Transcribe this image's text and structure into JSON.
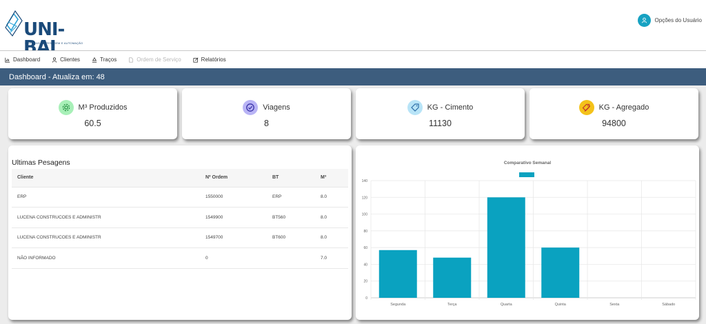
{
  "header": {
    "logo_text": "UNI-BAL",
    "logo_subtitle": "SISTEMAS DE PESAGEM E AUTOMAÇÃO",
    "user_options_label": "Opções do Usuário"
  },
  "nav": {
    "items": [
      {
        "label": "Dashboard",
        "icon": "chart-icon"
      },
      {
        "label": "Clientes",
        "icon": "user-icon"
      },
      {
        "label": "Traços",
        "icon": "truck-icon"
      },
      {
        "label": "Ordem de Serviço",
        "icon": "document-icon"
      },
      {
        "label": "Relatórios",
        "icon": "edit-icon"
      }
    ]
  },
  "titlebar": {
    "text": "Dashboard - Atualiza em: 48"
  },
  "stats": [
    {
      "label": "M³ Produzidos",
      "value": "60.5",
      "icon": "gear-icon",
      "icon_bg": "#a8f0b8",
      "icon_color": "#1e8a3c"
    },
    {
      "label": "Viagens",
      "value": "8",
      "icon": "check-circle-icon",
      "icon_bg": "#b9b4f5",
      "icon_color": "#3b34a8"
    },
    {
      "label": "KG - Cimento",
      "value": "11130",
      "icon": "tag-icon",
      "icon_bg": "#b8e4f7",
      "icon_color": "#2d6ea8"
    },
    {
      "label": "KG - Agregado",
      "value": "94800",
      "icon": "tags-icon",
      "icon_bg": "#f4c21a",
      "icon_color": "#c0392b"
    }
  ],
  "table": {
    "title": "Ultimas Pesagens",
    "columns": [
      "Cliente",
      "Nº Ordem",
      "BT",
      "M³"
    ],
    "rows": [
      [
        "ERP",
        "1550000",
        "ERP",
        "8.0"
      ],
      [
        "LUCENA CONSTRUCOES E ADMINISTR",
        "1549900",
        "BT560",
        "8.0"
      ],
      [
        "LUCENA CONSTRUCOES E ADMINISTR",
        "1549700",
        "BT600",
        "8.0"
      ],
      [
        "NÃO INFORMADO",
        "0",
        "",
        "7.0"
      ]
    ]
  },
  "colors": {
    "titlebar": "#3d5d7e",
    "bar": "#0aa2c0"
  },
  "chart_data": {
    "type": "bar",
    "title": "Comparativo Semanal",
    "categories": [
      "Segunda",
      "Terça",
      "Quarta",
      "Quinta",
      "Sexta",
      "Sábado"
    ],
    "series": [
      {
        "name": "",
        "values": [
          57,
          48,
          120,
          60,
          0,
          0
        ]
      }
    ],
    "ylim": [
      0,
      140
    ],
    "yticks": [
      0,
      20,
      40,
      60,
      80,
      100,
      120,
      140
    ],
    "grid": true,
    "legend": "top",
    "xlabel": "",
    "ylabel": ""
  }
}
